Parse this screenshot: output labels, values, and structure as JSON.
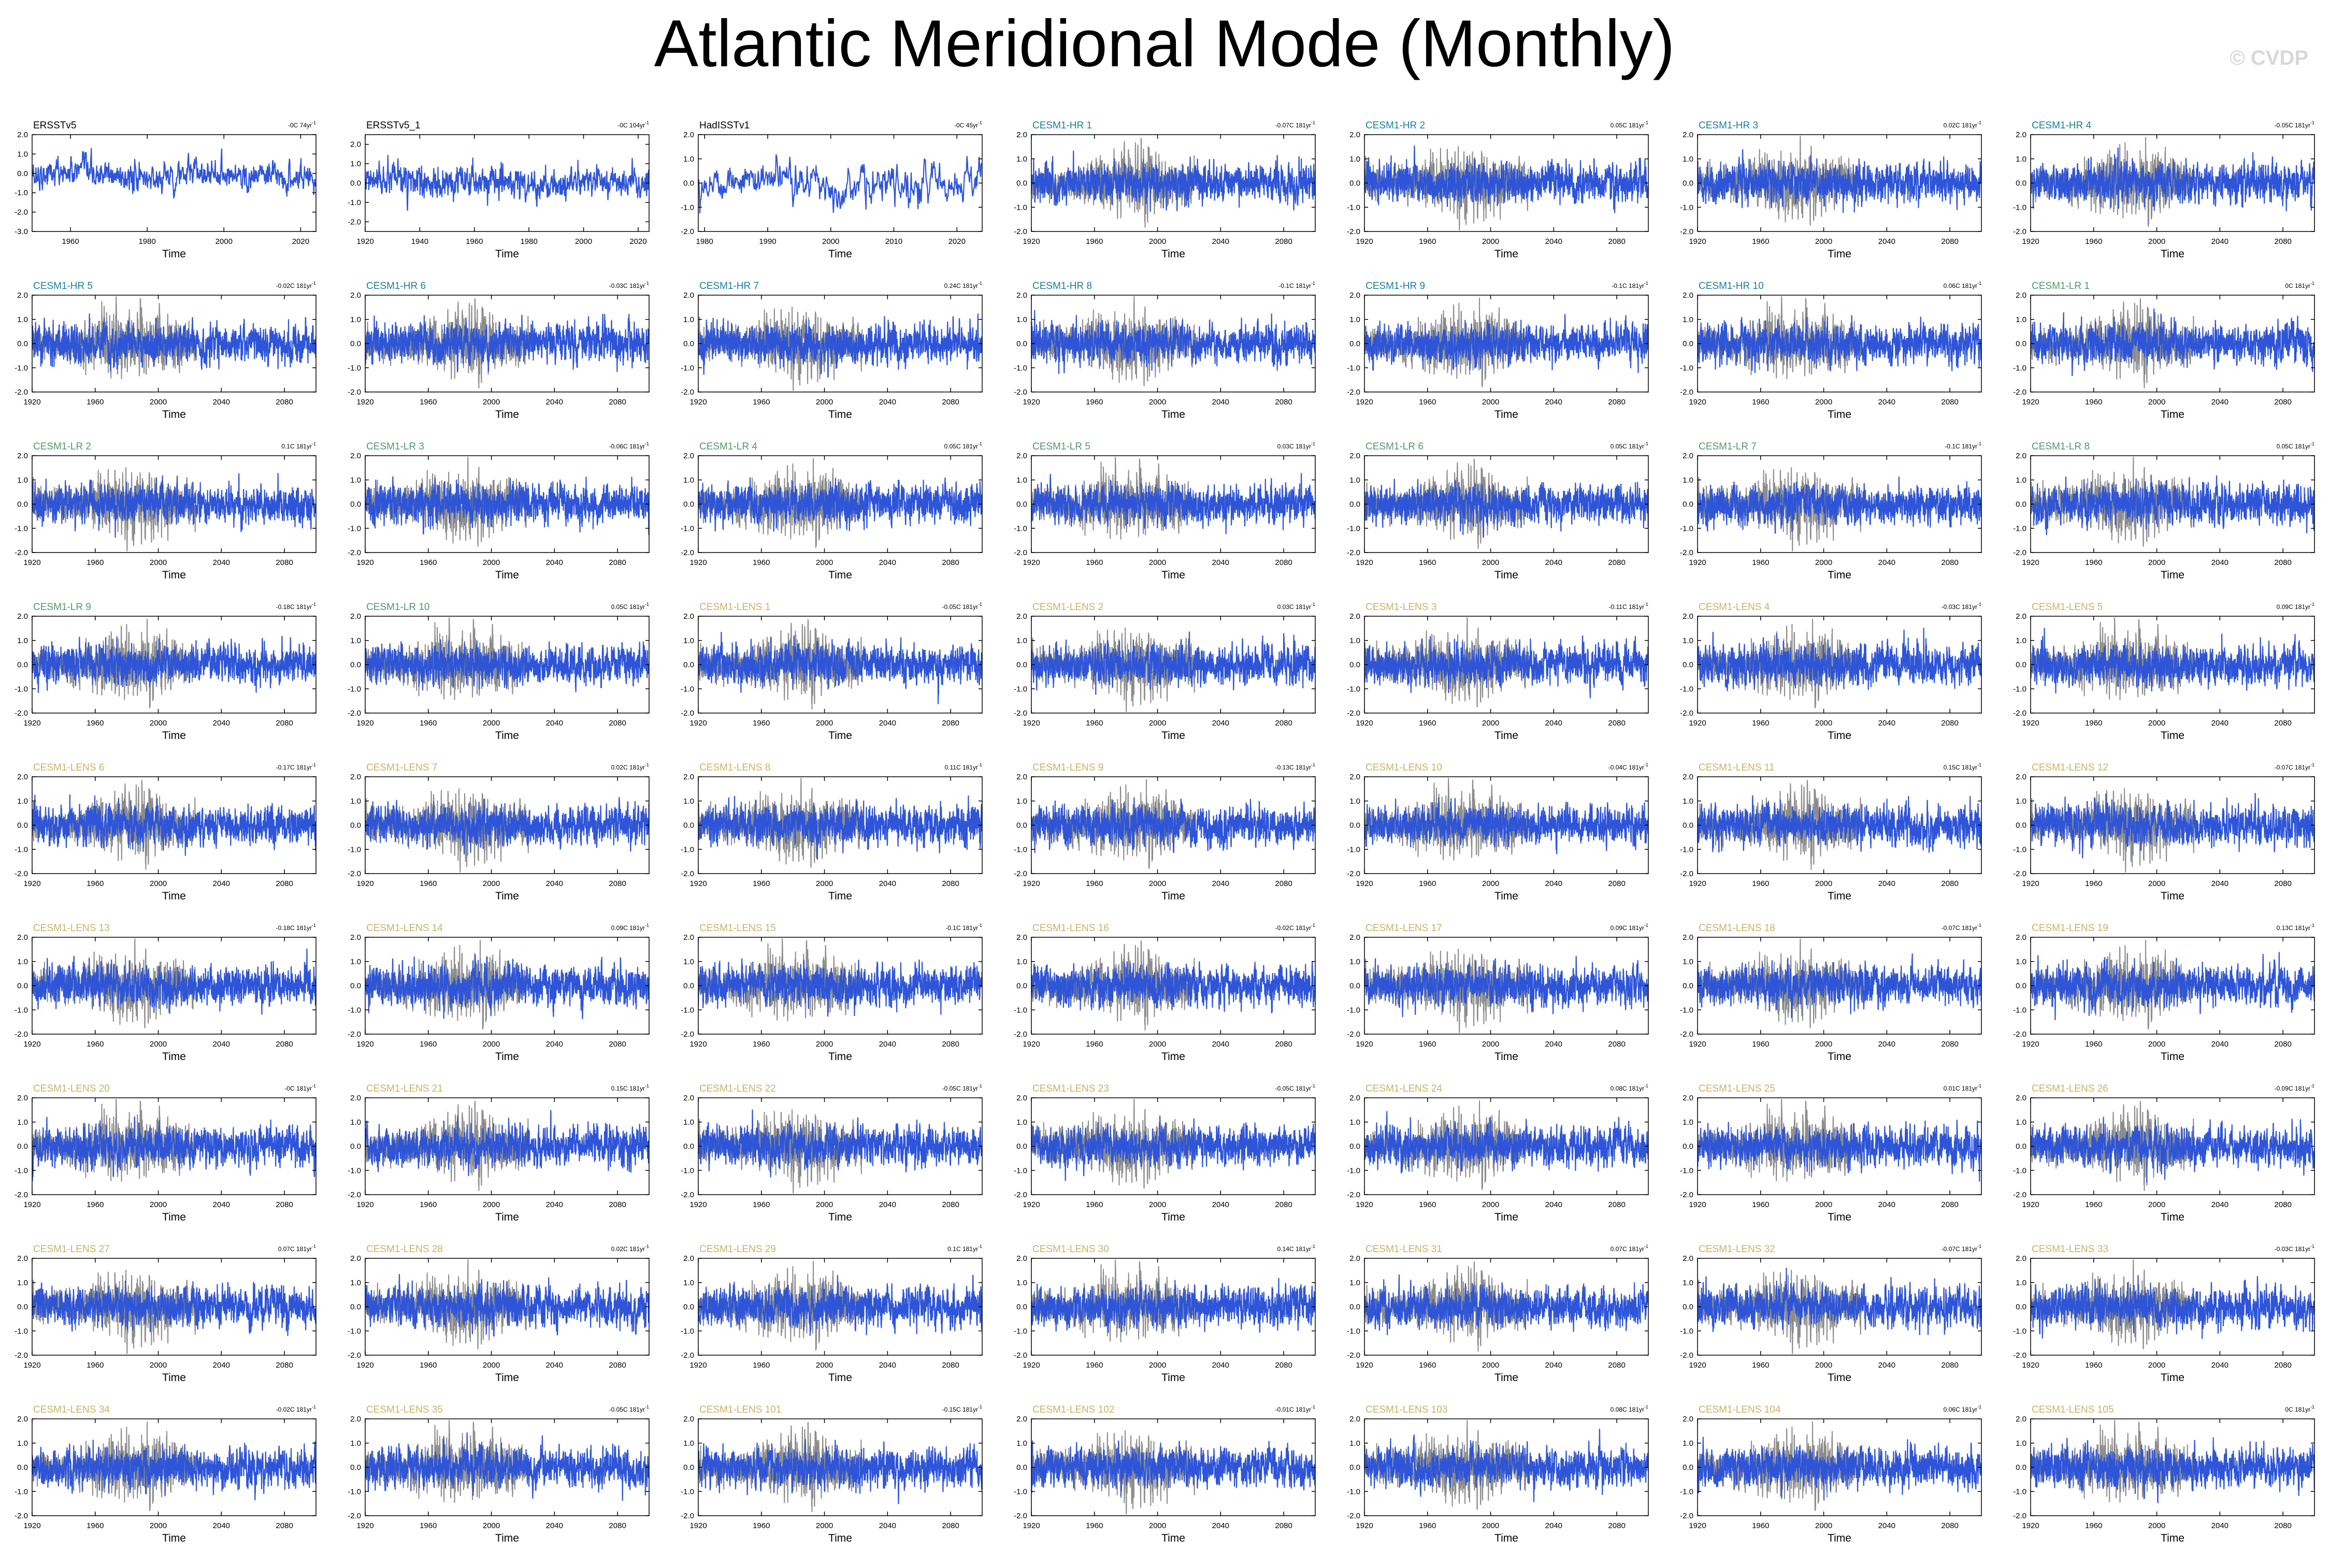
{
  "title": "Atlantic Meridional Mode (Monthly)",
  "watermark": "© CVDP",
  "colors": {
    "model_line": "#2e55d8",
    "obs_overlay": "#8c8c8c",
    "obs_title": "#000000",
    "hr_title": "#1a7f9a",
    "lr_title": "#4f9a6a",
    "lens_title": "#c9b266"
  },
  "chart_data": {
    "type": "line",
    "xlabel": "Time",
    "grid": false,
    "legend": "none",
    "panels": [
      {
        "name": "ERSSTv5",
        "trend": "-0C 74yr",
        "group": "obs",
        "xlim": [
          1950,
          2024
        ],
        "ylim": [
          -3.0,
          2.0
        ],
        "xticks": [
          "1960",
          "1980",
          "2000",
          "2020"
        ],
        "yticks": [
          "2.0",
          "1.0",
          "0.0",
          "-1.0",
          "-2.0",
          "-3.0"
        ]
      },
      {
        "name": "ERSSTv5_1",
        "trend": "-0C 104yr",
        "group": "obs",
        "xlim": [
          1920,
          2024
        ],
        "ylim": [
          -2.5,
          2.5
        ],
        "xticks": [
          "1920",
          "1940",
          "1960",
          "1980",
          "2000",
          "2020"
        ],
        "yticks": [
          "2.0",
          "1.0",
          "0.0",
          "-1.0",
          "-2.0"
        ]
      },
      {
        "name": "HadISSTv1",
        "trend": "-0C 45yr",
        "group": "obs",
        "xlim": [
          1979,
          2024
        ],
        "ylim": [
          -2.0,
          2.0
        ],
        "xticks": [
          "1980",
          "1990",
          "2000",
          "2010",
          "2020"
        ],
        "yticks": [
          "2.0",
          "1.0",
          "0.0",
          "-1.0",
          "-2.0"
        ]
      },
      {
        "name": "CESM1-HR 1",
        "trend": "-0.07C 181yr",
        "group": "hr"
      },
      {
        "name": "CESM1-HR 2",
        "trend": "0.05C 181yr",
        "group": "hr"
      },
      {
        "name": "CESM1-HR 3",
        "trend": "0.02C 181yr",
        "group": "hr"
      },
      {
        "name": "CESM1-HR 4",
        "trend": "-0.05C 181yr",
        "group": "hr"
      },
      {
        "name": "CESM1-HR 5",
        "trend": "-0.02C 181yr",
        "group": "hr"
      },
      {
        "name": "CESM1-HR 6",
        "trend": "-0.03C 181yr",
        "group": "hr"
      },
      {
        "name": "CESM1-HR 7",
        "trend": "0.24C 181yr",
        "group": "hr"
      },
      {
        "name": "CESM1-HR 8",
        "trend": "-0.1C 181yr",
        "group": "hr"
      },
      {
        "name": "CESM1-HR 9",
        "trend": "-0.1C 181yr",
        "group": "hr"
      },
      {
        "name": "CESM1-HR 10",
        "trend": "0.06C 181yr",
        "group": "hr"
      },
      {
        "name": "CESM1-LR 1",
        "trend": "0C 181yr",
        "group": "lr"
      },
      {
        "name": "CESM1-LR 2",
        "trend": "0.1C 181yr",
        "group": "lr"
      },
      {
        "name": "CESM1-LR 3",
        "trend": "-0.06C 181yr",
        "group": "lr"
      },
      {
        "name": "CESM1-LR 4",
        "trend": "0.05C 181yr",
        "group": "lr"
      },
      {
        "name": "CESM1-LR 5",
        "trend": "0.03C 181yr",
        "group": "lr"
      },
      {
        "name": "CESM1-LR 6",
        "trend": "0.05C 181yr",
        "group": "lr"
      },
      {
        "name": "CESM1-LR 7",
        "trend": "-0.1C 181yr",
        "group": "lr"
      },
      {
        "name": "CESM1-LR 8",
        "trend": "0.05C 181yr",
        "group": "lr"
      },
      {
        "name": "CESM1-LR 9",
        "trend": "-0.18C 181yr",
        "group": "lr"
      },
      {
        "name": "CESM1-LR 10",
        "trend": "0.05C 181yr",
        "group": "lr"
      },
      {
        "name": "CESM1-LENS 1",
        "trend": "-0.05C 181yr",
        "group": "lens"
      },
      {
        "name": "CESM1-LENS 2",
        "trend": "0.03C 181yr",
        "group": "lens"
      },
      {
        "name": "CESM1-LENS 3",
        "trend": "-0.11C 181yr",
        "group": "lens"
      },
      {
        "name": "CESM1-LENS 4",
        "trend": "-0.03C 181yr",
        "group": "lens"
      },
      {
        "name": "CESM1-LENS 5",
        "trend": "0.09C 181yr",
        "group": "lens"
      },
      {
        "name": "CESM1-LENS 6",
        "trend": "-0.17C 181yr",
        "group": "lens"
      },
      {
        "name": "CESM1-LENS 7",
        "trend": "0.02C 181yr",
        "group": "lens"
      },
      {
        "name": "CESM1-LENS 8",
        "trend": "0.11C 181yr",
        "group": "lens"
      },
      {
        "name": "CESM1-LENS 9",
        "trend": "-0.13C 181yr",
        "group": "lens"
      },
      {
        "name": "CESM1-LENS 10",
        "trend": "-0.04C 181yr",
        "group": "lens"
      },
      {
        "name": "CESM1-LENS 11",
        "trend": "0.15C 181yr",
        "group": "lens"
      },
      {
        "name": "CESM1-LENS 12",
        "trend": "-0.07C 181yr",
        "group": "lens"
      },
      {
        "name": "CESM1-LENS 13",
        "trend": "-0.18C 181yr",
        "group": "lens"
      },
      {
        "name": "CESM1-LENS 14",
        "trend": "0.09C 181yr",
        "group": "lens"
      },
      {
        "name": "CESM1-LENS 15",
        "trend": "-0.1C 181yr",
        "group": "lens"
      },
      {
        "name": "CESM1-LENS 16",
        "trend": "-0.02C 181yr",
        "group": "lens"
      },
      {
        "name": "CESM1-LENS 17",
        "trend": "0.09C 181yr",
        "group": "lens"
      },
      {
        "name": "CESM1-LENS 18",
        "trend": "-0.07C 181yr",
        "group": "lens"
      },
      {
        "name": "CESM1-LENS 19",
        "trend": "0.13C 181yr",
        "group": "lens"
      },
      {
        "name": "CESM1-LENS 20",
        "trend": "-0C 181yr",
        "group": "lens"
      },
      {
        "name": "CESM1-LENS 21",
        "trend": "0.15C 181yr",
        "group": "lens"
      },
      {
        "name": "CESM1-LENS 22",
        "trend": "-0.05C 181yr",
        "group": "lens"
      },
      {
        "name": "CESM1-LENS 23",
        "trend": "-0.05C 181yr",
        "group": "lens"
      },
      {
        "name": "CESM1-LENS 24",
        "trend": "0.08C 181yr",
        "group": "lens"
      },
      {
        "name": "CESM1-LENS 25",
        "trend": "0.01C 181yr",
        "group": "lens"
      },
      {
        "name": "CESM1-LENS 26",
        "trend": "-0.09C 181yr",
        "group": "lens"
      },
      {
        "name": "CESM1-LENS 27",
        "trend": "0.07C 181yr",
        "group": "lens"
      },
      {
        "name": "CESM1-LENS 28",
        "trend": "0.02C 181yr",
        "group": "lens"
      },
      {
        "name": "CESM1-LENS 29",
        "trend": "0.1C 181yr",
        "group": "lens"
      },
      {
        "name": "CESM1-LENS 30",
        "trend": "0.14C 181yr",
        "group": "lens"
      },
      {
        "name": "CESM1-LENS 31",
        "trend": "0.07C 181yr",
        "group": "lens"
      },
      {
        "name": "CESM1-LENS 32",
        "trend": "-0.07C 181yr",
        "group": "lens"
      },
      {
        "name": "CESM1-LENS 33",
        "trend": "-0.03C 181yr",
        "group": "lens"
      },
      {
        "name": "CESM1-LENS 34",
        "trend": "-0.02C 181yr",
        "group": "lens"
      },
      {
        "name": "CESM1-LENS 35",
        "trend": "-0.05C 181yr",
        "group": "lens"
      },
      {
        "name": "CESM1-LENS 101",
        "trend": "-0.15C 181yr",
        "group": "lens"
      },
      {
        "name": "CESM1-LENS 102",
        "trend": "-0.01C 181yr",
        "group": "lens"
      },
      {
        "name": "CESM1-LENS 103",
        "trend": "0.08C 181yr",
        "group": "lens"
      },
      {
        "name": "CESM1-LENS 104",
        "trend": "0.06C 181yr",
        "group": "lens"
      },
      {
        "name": "CESM1-LENS 105",
        "trend": "0C 181yr",
        "group": "lens"
      }
    ],
    "model_defaults": {
      "xlim": [
        1920,
        2100
      ],
      "ylim": [
        -2.0,
        2.0
      ],
      "xticks": [
        "1920",
        "1960",
        "2000",
        "2040",
        "2080"
      ],
      "yticks": [
        "2.0",
        "1.0",
        "0.0",
        "-1.0",
        "-2.0"
      ],
      "obs_overlay_range": [
        1920,
        2024
      ]
    }
  }
}
